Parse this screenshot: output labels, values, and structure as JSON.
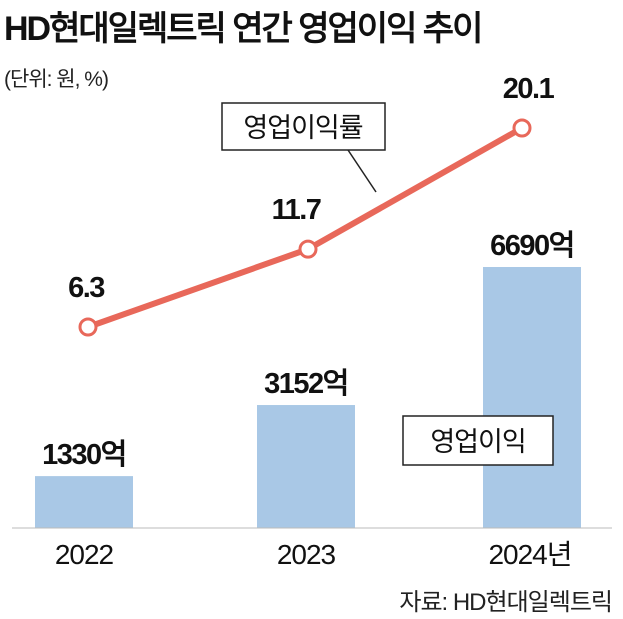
{
  "chart_data": {
    "type": "bar+line",
    "title": "HD현대일렉트릭 연간 영업이익 추이",
    "unit_note": "(단위: 원, %)",
    "categories": [
      "2022",
      "2023",
      "2024년"
    ],
    "series": [
      {
        "name": "영업이익",
        "type": "bar",
        "values": [
          1330,
          3152,
          6690
        ],
        "labels": [
          "1330억",
          "3152억",
          "6690억"
        ],
        "color": "#a9c8e6"
      },
      {
        "name": "영업이익률",
        "type": "line",
        "values": [
          6.3,
          11.7,
          20.1
        ],
        "labels": [
          "6.3",
          "11.7",
          "20.1"
        ],
        "color": "#e8685a"
      }
    ],
    "source": "자료: HD현대일렉트릭"
  }
}
